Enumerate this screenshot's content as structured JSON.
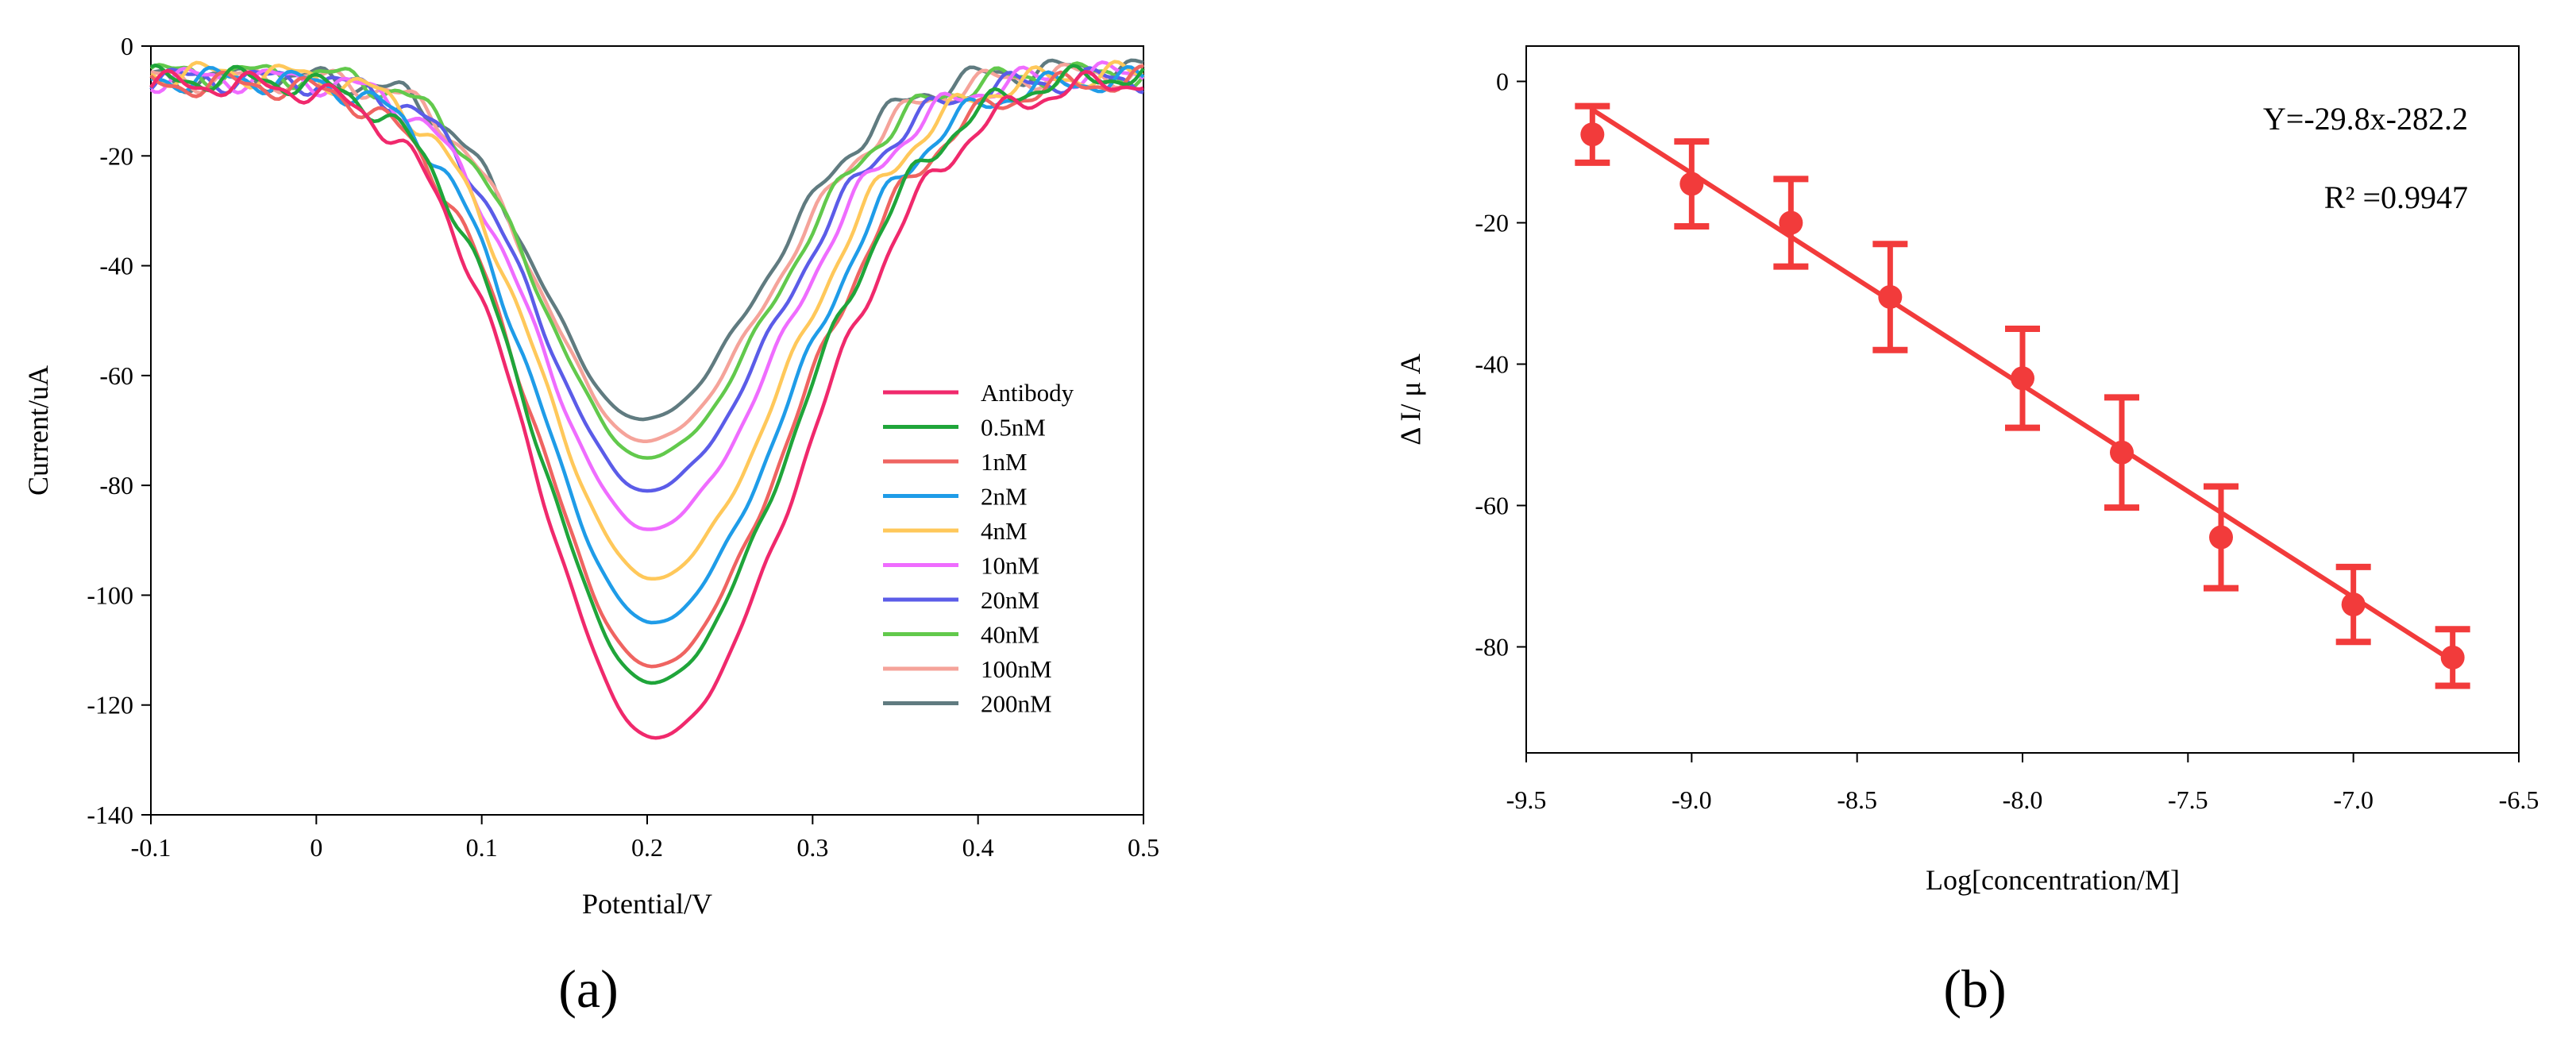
{
  "chart_data": [
    {
      "panel": "a",
      "type": "line",
      "xlabel": "Potential/V",
      "ylabel": "Current/uA",
      "xlim": [
        -0.1,
        0.5
      ],
      "ylim": [
        -140,
        0
      ],
      "xticks": [
        -0.1,
        0,
        0.1,
        0.2,
        0.3,
        0.4,
        0.5
      ],
      "xtick_labels": [
        "-0.1",
        "0",
        "0.1",
        "0.2",
        "0.3",
        "0.4",
        "0.5"
      ],
      "yticks": [
        0,
        -20,
        -40,
        -60,
        -80,
        -100,
        -120,
        -140
      ],
      "ytick_labels": [
        "0",
        "-20",
        "-40",
        "-60",
        "-80",
        "-100",
        "-120",
        "-140"
      ],
      "legend_position": "lower-right",
      "series": [
        {
          "name": "Antibody",
          "color": "#f0296c",
          "peak_x": 0.205,
          "min": -126,
          "baseline_left": -7,
          "baseline_right": -6
        },
        {
          "name": "0.5nM",
          "color": "#1fa53a",
          "peak_x": 0.203,
          "min": -116,
          "baseline_left": -6,
          "baseline_right": -5
        },
        {
          "name": "1nM",
          "color": "#ef6461",
          "peak_x": 0.203,
          "min": -113,
          "baseline_left": -7,
          "baseline_right": -6
        },
        {
          "name": "2nM",
          "color": "#1f9ce8",
          "peak_x": 0.203,
          "min": -105,
          "baseline_left": -6,
          "baseline_right": -6
        },
        {
          "name": "4nM",
          "color": "#ffc85a",
          "peak_x": 0.203,
          "min": -97,
          "baseline_left": -5,
          "baseline_right": -5
        },
        {
          "name": "10nM",
          "color": "#ef6cff",
          "peak_x": 0.201,
          "min": -88,
          "baseline_left": -6,
          "baseline_right": -5
        },
        {
          "name": "20nM",
          "color": "#5b5ce8",
          "peak_x": 0.2,
          "min": -81,
          "baseline_left": -6,
          "baseline_right": -6
        },
        {
          "name": "40nM",
          "color": "#62c94c",
          "peak_x": 0.2,
          "min": -75,
          "baseline_left": -5,
          "baseline_right": -5
        },
        {
          "name": "100nM",
          "color": "#f5a39a",
          "peak_x": 0.199,
          "min": -72,
          "baseline_left": -6,
          "baseline_right": -5
        },
        {
          "name": "200nM",
          "color": "#607b80",
          "peak_x": 0.197,
          "min": -68,
          "baseline_left": -6,
          "baseline_right": -4
        }
      ]
    },
    {
      "panel": "b",
      "type": "scatter",
      "xlabel": "Log[concentration/M]",
      "ylabel": "Δ I/ μ A",
      "xlim": [
        -9.5,
        -6.5
      ],
      "ylim": [
        -95,
        5
      ],
      "xticks": [
        -9.5,
        -9.0,
        -8.5,
        -8.0,
        -7.5,
        -7.0,
        -6.5
      ],
      "xtick_labels": [
        "-9.5",
        "-9.0",
        "-8.5",
        "-8.0",
        "-7.5",
        "-7.0",
        "-6.5"
      ],
      "yticks": [
        0,
        -20,
        -40,
        -60,
        -80
      ],
      "ytick_labels": [
        "0",
        "-20",
        "-40",
        "-60",
        "-80"
      ],
      "color": "#f23b3b",
      "x": [
        -9.3,
        -9.0,
        -8.7,
        -8.4,
        -8.0,
        -7.7,
        -7.4,
        -7.0,
        -6.7
      ],
      "y": [
        -7.5,
        -14.5,
        -20,
        -30.5,
        -42,
        -52.5,
        -64.5,
        -74,
        -81.5
      ],
      "error": [
        4,
        6,
        6.2,
        7.5,
        7,
        7.8,
        7.2,
        5.3,
        4
      ],
      "fit": {
        "slope": -29.8,
        "intercept": -282.2,
        "x_range": [
          -9.3,
          -6.7
        ]
      },
      "equation": "Y=-29.8x-282.2",
      "r2_text": "R² =0.9947"
    }
  ],
  "panel_labels": {
    "a": "(a)",
    "b": "(b)"
  }
}
